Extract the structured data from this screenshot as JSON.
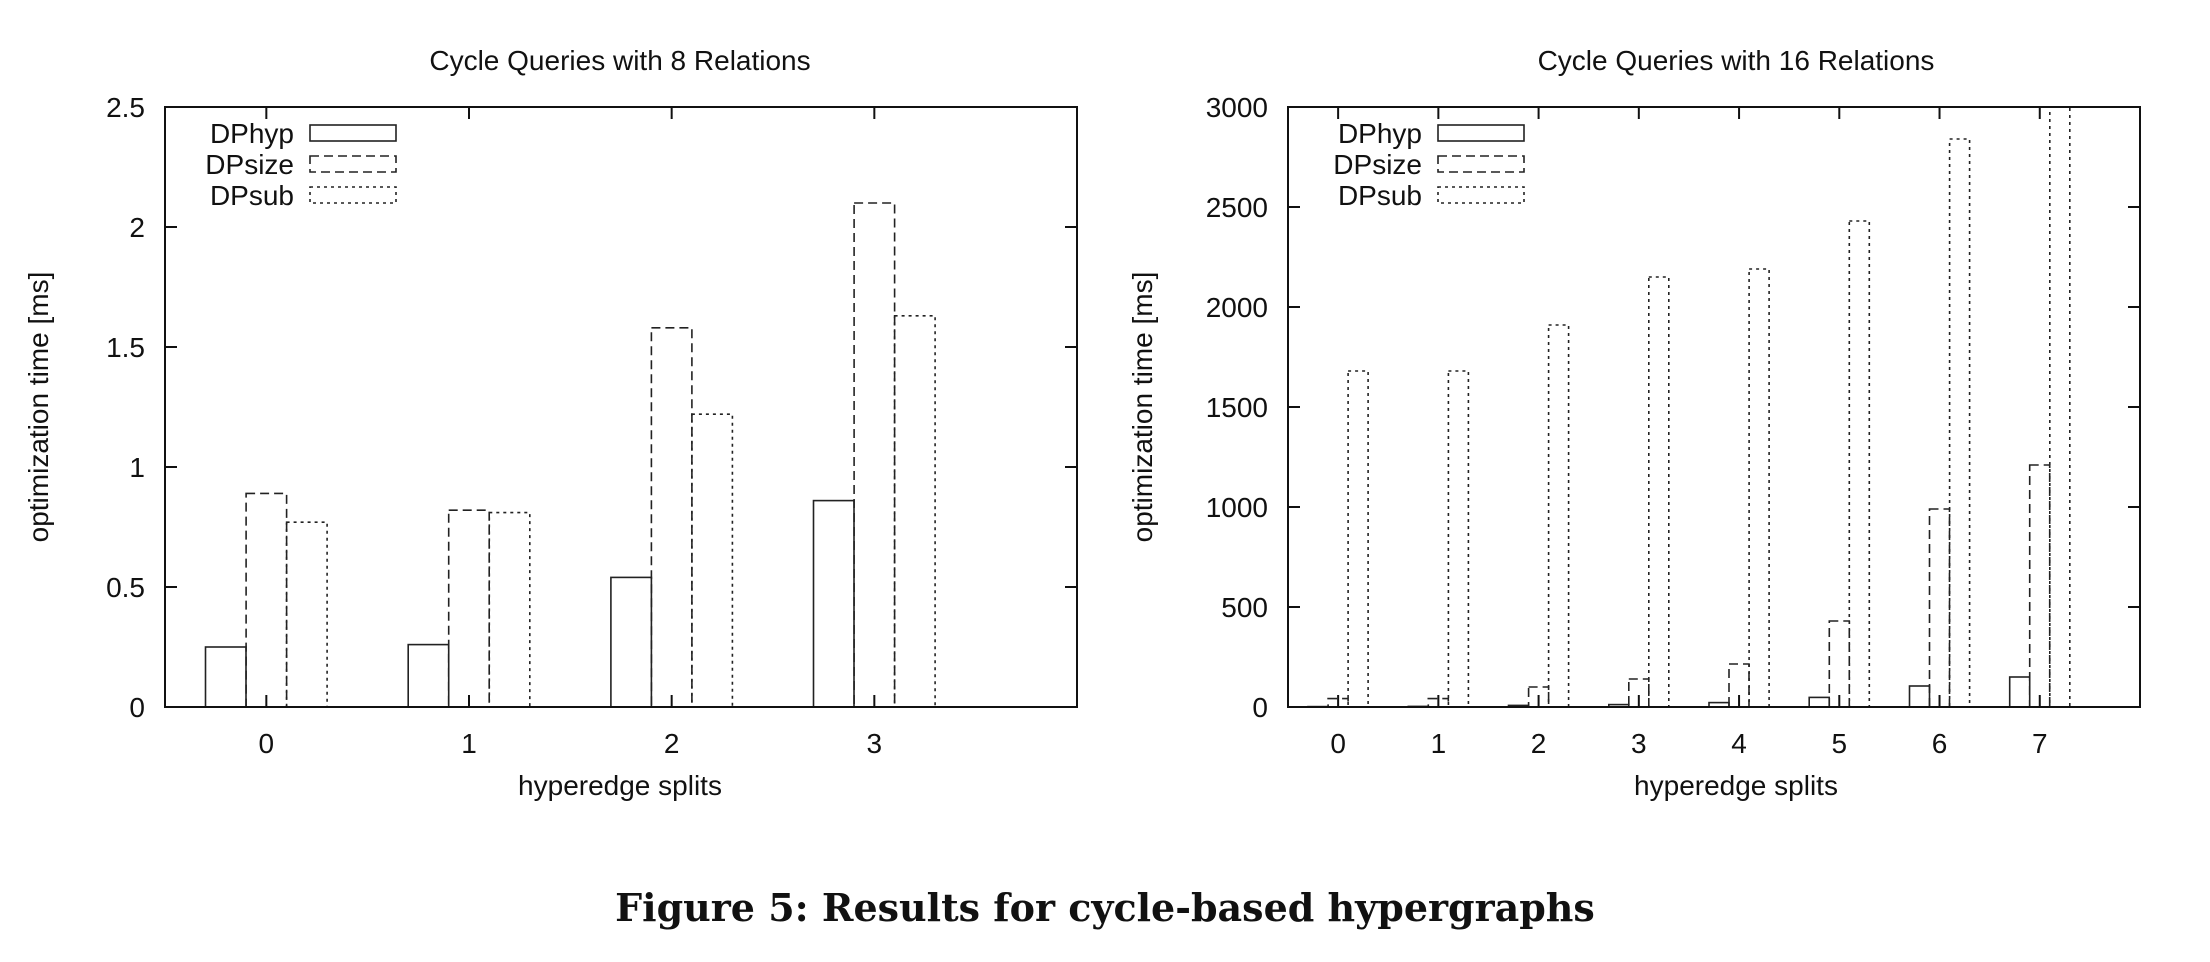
{
  "figure": {
    "caption": "Figure 5: Results for cycle-based hypergraphs"
  },
  "chart_data": [
    {
      "type": "bar",
      "title": "Cycle Queries with 8 Relations",
      "xlabel": "hyperedge splits",
      "ylabel": "optimization time [ms]",
      "categories": [
        "0",
        "1",
        "2",
        "3"
      ],
      "ylim": [
        0,
        2.5
      ],
      "yticks": [
        "0",
        "0.5",
        "1",
        "1.5",
        "2",
        "2.5"
      ],
      "legend": "top-left",
      "grid": false,
      "series": [
        {
          "name": "DPhyp",
          "style": "solid",
          "values": [
            0.25,
            0.26,
            0.54,
            0.86
          ]
        },
        {
          "name": "DPsize",
          "style": "dashed",
          "values": [
            0.89,
            0.82,
            1.58,
            2.1
          ]
        },
        {
          "name": "DPsub",
          "style": "dotted",
          "values": [
            0.77,
            0.81,
            1.22,
            1.63
          ]
        }
      ]
    },
    {
      "type": "bar",
      "title": "Cycle Queries with 16 Relations",
      "xlabel": "hyperedge splits",
      "ylabel": "optimization time [ms]",
      "categories": [
        "0",
        "1",
        "2",
        "3",
        "4",
        "5",
        "6",
        "7"
      ],
      "ylim": [
        0,
        3000
      ],
      "yticks": [
        "0",
        "500",
        "1000",
        "1500",
        "2000",
        "2500",
        "3000"
      ],
      "legend": "top-left",
      "grid": false,
      "series": [
        {
          "name": "DPhyp",
          "style": "solid",
          "values": [
            2,
            3,
            8,
            12,
            22,
            48,
            105,
            150
          ]
        },
        {
          "name": "DPsize",
          "style": "dashed",
          "values": [
            42,
            42,
            100,
            140,
            215,
            430,
            990,
            1210
          ]
        },
        {
          "name": "DPsub",
          "style": "dotted",
          "values": [
            1680,
            1680,
            1910,
            2150,
            2190,
            2430,
            2840,
            3000
          ]
        }
      ]
    }
  ]
}
